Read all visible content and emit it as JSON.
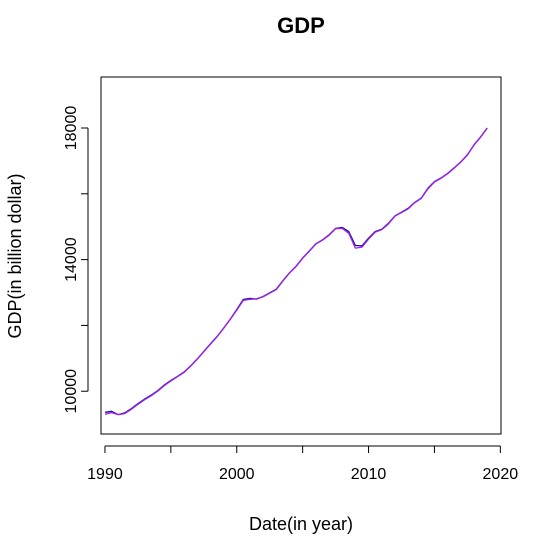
{
  "chart_data": {
    "type": "line",
    "title": "GDP",
    "xlabel": "Date(in year)",
    "ylabel": "GDP(in billion dollar)",
    "xlim": [
      1989.7,
      2020.05
    ],
    "ylim": [
      8700,
      19550
    ],
    "x_ticks": [
      1990,
      1995,
      2000,
      2005,
      2010,
      2015,
      2020
    ],
    "x_tick_labels": [
      "1990",
      "2000",
      "2010",
      "2020"
    ],
    "y_ticks": [
      10000,
      12000,
      14000,
      16000,
      18000
    ],
    "y_tick_labels": [
      "10000",
      "14000",
      "18000"
    ],
    "grid": false,
    "legend": "none",
    "colors": {
      "series_1": "#1a1a8c",
      "series_2": "#a020f0",
      "axis": "#000000"
    },
    "series": [
      {
        "values": [
          [
            1990.0,
            9360
          ],
          [
            1990.5,
            9390
          ],
          [
            1991.0,
            9290
          ],
          [
            1991.5,
            9340
          ],
          [
            1992.0,
            9470
          ],
          [
            1992.5,
            9620
          ],
          [
            1993.0,
            9760
          ],
          [
            1993.5,
            9880
          ],
          [
            1994.0,
            10020
          ],
          [
            1994.5,
            10190
          ],
          [
            1995.0,
            10330
          ],
          [
            1995.5,
            10450
          ],
          [
            1996.0,
            10580
          ],
          [
            1996.5,
            10770
          ],
          [
            1997.0,
            10980
          ],
          [
            1997.5,
            11210
          ],
          [
            1998.0,
            11440
          ],
          [
            1998.5,
            11660
          ],
          [
            1999.0,
            11920
          ],
          [
            1999.5,
            12190
          ],
          [
            2000.0,
            12480
          ],
          [
            2000.5,
            12790
          ],
          [
            2001.0,
            12820
          ],
          [
            2001.5,
            12800
          ],
          [
            2002.0,
            12880
          ],
          [
            2002.5,
            12990
          ],
          [
            2003.0,
            13100
          ],
          [
            2003.5,
            13360
          ],
          [
            2004.0,
            13600
          ],
          [
            2004.5,
            13800
          ],
          [
            2005.0,
            14050
          ],
          [
            2005.5,
            14260
          ],
          [
            2006.0,
            14480
          ],
          [
            2006.5,
            14600
          ],
          [
            2007.0,
            14750
          ],
          [
            2007.5,
            14950
          ],
          [
            2008.0,
            14980
          ],
          [
            2008.5,
            14850
          ],
          [
            2009.0,
            14430
          ],
          [
            2009.5,
            14420
          ],
          [
            2010.0,
            14650
          ],
          [
            2010.5,
            14850
          ],
          [
            2011.0,
            14920
          ],
          [
            2011.5,
            15100
          ],
          [
            2012.0,
            15330
          ],
          [
            2012.5,
            15440
          ],
          [
            2013.0,
            15560
          ],
          [
            2013.5,
            15740
          ],
          [
            2014.0,
            15870
          ],
          [
            2014.5,
            16170
          ],
          [
            2015.0,
            16370
          ],
          [
            2015.5,
            16480
          ],
          [
            2016.0,
            16620
          ],
          [
            2016.5,
            16790
          ],
          [
            2017.0,
            16970
          ],
          [
            2017.5,
            17190
          ],
          [
            2018.0,
            17490
          ],
          [
            2018.5,
            17730
          ],
          [
            2019.0,
            18000
          ]
        ]
      },
      {
        "values": [
          [
            1990.0,
            9300
          ],
          [
            1990.5,
            9350
          ],
          [
            1991.0,
            9290
          ],
          [
            1991.5,
            9320
          ],
          [
            1992.0,
            9450
          ],
          [
            1992.5,
            9600
          ],
          [
            1993.0,
            9740
          ],
          [
            1993.5,
            9860
          ],
          [
            1994.0,
            10000
          ],
          [
            1994.5,
            10170
          ],
          [
            1995.0,
            10310
          ],
          [
            1995.5,
            10440
          ],
          [
            1996.0,
            10570
          ],
          [
            1996.5,
            10760
          ],
          [
            1997.0,
            10970
          ],
          [
            1997.5,
            11200
          ],
          [
            1998.0,
            11430
          ],
          [
            1998.5,
            11650
          ],
          [
            1999.0,
            11910
          ],
          [
            1999.5,
            12180
          ],
          [
            2000.0,
            12460
          ],
          [
            2000.5,
            12760
          ],
          [
            2001.0,
            12790
          ],
          [
            2001.5,
            12810
          ],
          [
            2002.0,
            12870
          ],
          [
            2002.5,
            12980
          ],
          [
            2003.0,
            13090
          ],
          [
            2003.5,
            13350
          ],
          [
            2004.0,
            13590
          ],
          [
            2004.5,
            13790
          ],
          [
            2005.0,
            14040
          ],
          [
            2005.5,
            14250
          ],
          [
            2006.0,
            14470
          ],
          [
            2006.5,
            14590
          ],
          [
            2007.0,
            14740
          ],
          [
            2007.5,
            14940
          ],
          [
            2008.0,
            14950
          ],
          [
            2008.5,
            14800
          ],
          [
            2009.0,
            14350
          ],
          [
            2009.5,
            14380
          ],
          [
            2010.0,
            14620
          ],
          [
            2010.5,
            14830
          ],
          [
            2011.0,
            14910
          ],
          [
            2011.5,
            15080
          ],
          [
            2012.0,
            15320
          ],
          [
            2012.5,
            15430
          ],
          [
            2013.0,
            15540
          ],
          [
            2013.5,
            15730
          ],
          [
            2014.0,
            15860
          ],
          [
            2014.5,
            16150
          ],
          [
            2015.0,
            16360
          ],
          [
            2015.5,
            16470
          ],
          [
            2016.0,
            16610
          ],
          [
            2016.5,
            16780
          ],
          [
            2017.0,
            16960
          ],
          [
            2017.5,
            17180
          ],
          [
            2018.0,
            17480
          ],
          [
            2018.5,
            17720
          ],
          [
            2019.0,
            17990
          ]
        ]
      }
    ]
  }
}
